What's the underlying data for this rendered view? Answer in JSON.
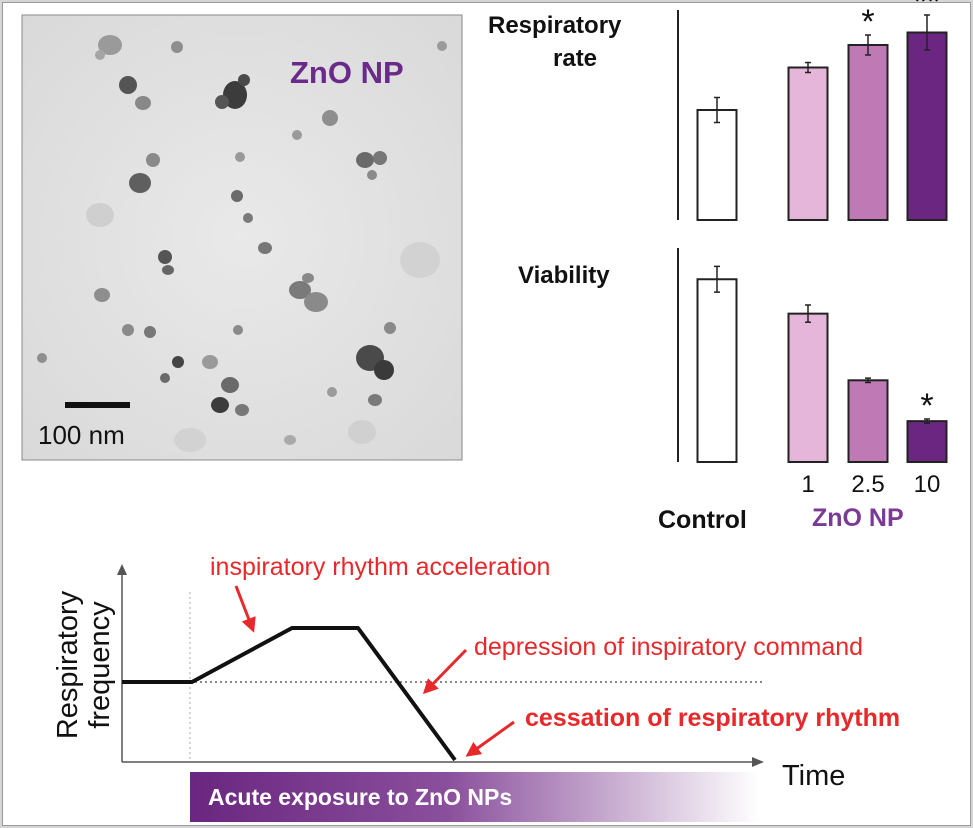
{
  "micrograph": {
    "label": "ZnO NP",
    "scale_bar_label": "100 nm",
    "label_color": "#6a2a8a"
  },
  "bar_charts": {
    "respiratory_rate": {
      "title_line1": "Respiratory",
      "title_line2": "rate"
    },
    "viability": {
      "title": "Viability"
    },
    "control_label": "Control",
    "group_label": "ZnO NP",
    "doses": [
      "1",
      "2.5",
      "10"
    ]
  },
  "chart_data": [
    {
      "type": "bar",
      "title": "Respiratory rate",
      "categories": [
        "Control",
        "1",
        "2.5",
        "10"
      ],
      "values": [
        0.44,
        0.61,
        0.7,
        0.75
      ],
      "errors": [
        0.05,
        0.02,
        0.04,
        0.07
      ],
      "significance": [
        "",
        "",
        "*",
        "**"
      ],
      "colors": [
        "#ffffff",
        "#e6b5da",
        "#bf7ab5",
        "#6a2680"
      ],
      "ylim": [
        0,
        1
      ]
    },
    {
      "type": "bar",
      "title": "Viability",
      "categories": [
        "Control",
        "1",
        "2.5",
        "10"
      ],
      "values": [
        0.85,
        0.69,
        0.38,
        0.19
      ],
      "errors": [
        0.06,
        0.04,
        0.01,
        0.01
      ],
      "significance": [
        "",
        "",
        "",
        "*"
      ],
      "colors": [
        "#ffffff",
        "#e6b5da",
        "#bf7ab5",
        "#6a2680"
      ],
      "ylim": [
        0,
        1
      ]
    }
  ],
  "timeline": {
    "y_axis_line1": "Respiratory",
    "y_axis_line2": "frequency",
    "x_axis": "Time",
    "annotations": {
      "acceleration": "inspiratory rhythm acceleration",
      "depression": "depression of inspiratory command",
      "cessation": "cessation of respiratory rhythm"
    },
    "exposure_label": "Acute exposure to ZnO NPs",
    "annotation_color": "#e8282a",
    "exposure_color": "#6a2680"
  }
}
